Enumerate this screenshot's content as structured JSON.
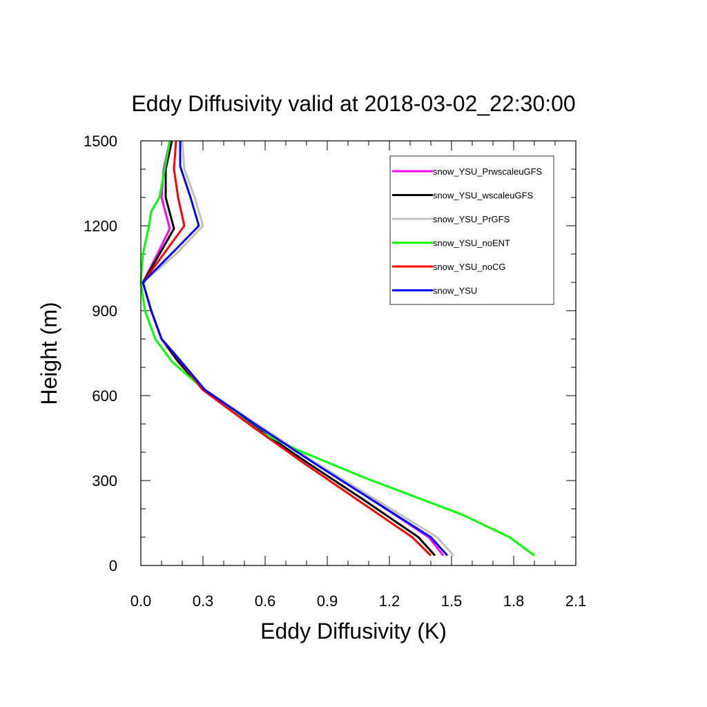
{
  "chart_data": {
    "type": "line",
    "title": "Eddy Diffusivity valid at 2018-03-02_22:30:00",
    "xlabel": "Eddy Diffusivity (K)",
    "ylabel": "Height (m)",
    "xlim": [
      0.0,
      2.1
    ],
    "ylim": [
      0,
      1500
    ],
    "xticks": [
      "0.0",
      "0.3",
      "0.6",
      "0.9",
      "1.2",
      "1.5",
      "1.8",
      "2.1"
    ],
    "yticks": [
      "0",
      "300",
      "600",
      "900",
      "1200",
      "1500"
    ],
    "grid": false,
    "legend_position": "top-right",
    "series": [
      {
        "name": "snow_YSU_PrwscaleuGFS",
        "color": "#ff00ff",
        "points": [
          [
            1.46,
            35
          ],
          [
            1.39,
            100
          ],
          [
            1.12,
            230
          ],
          [
            0.84,
            360
          ],
          [
            0.57,
            490
          ],
          [
            0.3,
            620
          ],
          [
            0.16,
            750
          ],
          [
            0.1,
            800
          ],
          [
            0.05,
            900
          ],
          [
            0.01,
            1000
          ],
          [
            0.08,
            1100
          ],
          [
            0.14,
            1190
          ],
          [
            0.1,
            1300
          ],
          [
            0.11,
            1400
          ],
          [
            0.14,
            1500
          ]
        ]
      },
      {
        "name": "snow_YSU_wscaleuGFS",
        "color": "#000000",
        "points": [
          [
            1.42,
            35
          ],
          [
            1.34,
            100
          ],
          [
            1.08,
            230
          ],
          [
            0.81,
            360
          ],
          [
            0.55,
            490
          ],
          [
            0.3,
            620
          ],
          [
            0.18,
            720
          ],
          [
            0.1,
            800
          ],
          [
            0.05,
            900
          ],
          [
            0.01,
            1000
          ],
          [
            0.09,
            1100
          ],
          [
            0.16,
            1190
          ],
          [
            0.12,
            1300
          ],
          [
            0.12,
            1400
          ],
          [
            0.15,
            1500
          ]
        ]
      },
      {
        "name": "snow_YSU_PrGFS",
        "color": "#c0c0c0",
        "points": [
          [
            1.51,
            35
          ],
          [
            1.43,
            100
          ],
          [
            1.14,
            230
          ],
          [
            0.85,
            360
          ],
          [
            0.58,
            490
          ],
          [
            0.31,
            620
          ],
          [
            0.16,
            750
          ],
          [
            0.1,
            800
          ],
          [
            0.05,
            900
          ],
          [
            0.01,
            1000
          ],
          [
            0.17,
            1100
          ],
          [
            0.3,
            1200
          ],
          [
            0.26,
            1300
          ],
          [
            0.21,
            1400
          ],
          [
            0.2,
            1500
          ]
        ]
      },
      {
        "name": "snow_YSU_noENT",
        "color": "#00ff00",
        "points": [
          [
            1.9,
            35
          ],
          [
            1.78,
            100
          ],
          [
            1.55,
            180
          ],
          [
            1.08,
            310
          ],
          [
            0.75,
            410
          ],
          [
            0.58,
            470
          ],
          [
            0.3,
            625
          ],
          [
            0.15,
            720
          ],
          [
            0.07,
            800
          ],
          [
            0.02,
            900
          ],
          [
            0.0,
            1000
          ],
          [
            0.01,
            1100
          ],
          [
            0.04,
            1200
          ],
          [
            0.05,
            1250
          ],
          [
            0.09,
            1300
          ],
          [
            0.14,
            1500
          ]
        ]
      },
      {
        "name": "snow_YSU_noCG",
        "color": "#ff0000",
        "points": [
          [
            1.4,
            35
          ],
          [
            1.31,
            100
          ],
          [
            1.05,
            230
          ],
          [
            0.79,
            360
          ],
          [
            0.54,
            490
          ],
          [
            0.3,
            620
          ],
          [
            0.17,
            740
          ],
          [
            0.1,
            800
          ],
          [
            0.05,
            900
          ],
          [
            0.01,
            1000
          ],
          [
            0.13,
            1120
          ],
          [
            0.21,
            1200
          ],
          [
            0.18,
            1300
          ],
          [
            0.16,
            1400
          ],
          [
            0.17,
            1500
          ]
        ]
      },
      {
        "name": "snow_YSU",
        "color": "#0000ff",
        "points": [
          [
            1.48,
            35
          ],
          [
            1.4,
            100
          ],
          [
            1.12,
            230
          ],
          [
            0.84,
            360
          ],
          [
            0.57,
            490
          ],
          [
            0.31,
            620
          ],
          [
            0.16,
            750
          ],
          [
            0.1,
            800
          ],
          [
            0.05,
            900
          ],
          [
            0.01,
            1000
          ],
          [
            0.16,
            1110
          ],
          [
            0.28,
            1200
          ],
          [
            0.24,
            1300
          ],
          [
            0.19,
            1410
          ],
          [
            0.19,
            1500
          ]
        ]
      }
    ]
  }
}
